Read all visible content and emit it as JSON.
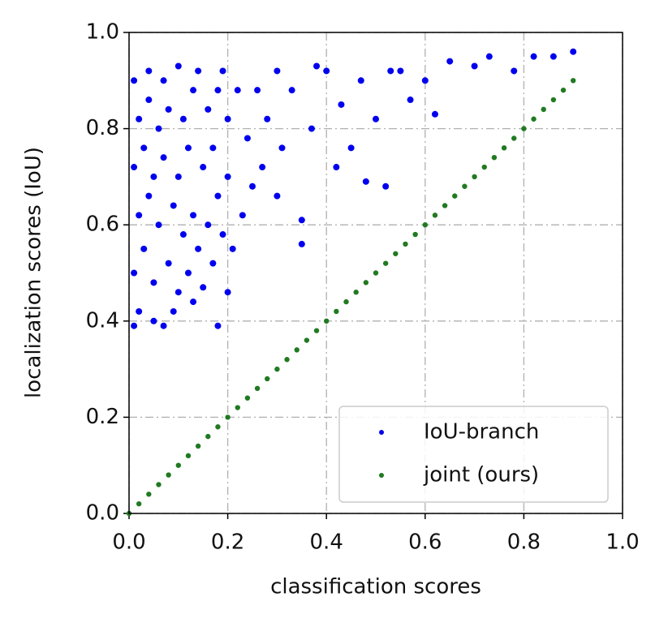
{
  "chart_data": {
    "type": "scatter",
    "xlabel": "classification scores",
    "ylabel": "localization scores (IoU)",
    "xlim": [
      0,
      1
    ],
    "ylim": [
      0,
      1
    ],
    "xticks": [
      {
        "value": 0,
        "label": "0.0"
      },
      0.2,
      0.4,
      0.6,
      0.8,
      {
        "value": 1,
        "label": "1.0"
      }
    ],
    "yticks": [
      {
        "value": 0,
        "label": "0.0"
      },
      0.2,
      0.4,
      0.6,
      0.8,
      {
        "value": 1,
        "label": "1.0"
      }
    ],
    "grid": true,
    "legend": "lower right",
    "series": [
      {
        "name": "IoU-branch",
        "color": "#0000ee",
        "x": [
          0.01,
          0.02,
          0.05,
          0.07,
          0.09,
          0.13,
          0.18,
          0.15,
          0.2,
          0.01,
          0.03,
          0.05,
          0.08,
          0.1,
          0.12,
          0.14,
          0.17,
          0.19,
          0.02,
          0.04,
          0.06,
          0.09,
          0.11,
          0.13,
          0.16,
          0.18,
          0.21,
          0.01,
          0.03,
          0.05,
          0.07,
          0.1,
          0.12,
          0.15,
          0.17,
          0.2,
          0.02,
          0.04,
          0.06,
          0.08,
          0.11,
          0.13,
          0.16,
          0.18,
          0.2,
          0.01,
          0.04,
          0.07,
          0.1,
          0.14,
          0.19,
          0.23,
          0.25,
          0.24,
          0.27,
          0.26,
          0.28,
          0.3,
          0.31,
          0.33,
          0.35,
          0.35,
          0.37,
          0.4,
          0.42,
          0.43,
          0.45,
          0.47,
          0.5,
          0.52,
          0.55,
          0.57,
          0.6,
          0.62,
          0.65,
          0.7,
          0.73,
          0.78,
          0.82,
          0.86,
          0.9,
          0.3,
          0.38,
          0.48,
          0.53,
          0.22
        ],
        "values": [
          0.39,
          0.42,
          0.4,
          0.39,
          0.42,
          0.44,
          0.39,
          0.47,
          0.46,
          0.5,
          0.55,
          0.48,
          0.52,
          0.46,
          0.5,
          0.55,
          0.52,
          0.58,
          0.62,
          0.66,
          0.6,
          0.64,
          0.58,
          0.62,
          0.6,
          0.66,
          0.55,
          0.72,
          0.76,
          0.7,
          0.74,
          0.7,
          0.76,
          0.72,
          0.76,
          0.7,
          0.82,
          0.86,
          0.8,
          0.84,
          0.82,
          0.88,
          0.84,
          0.88,
          0.82,
          0.9,
          0.92,
          0.9,
          0.93,
          0.92,
          0.92,
          0.62,
          0.68,
          0.78,
          0.72,
          0.88,
          0.82,
          0.66,
          0.76,
          0.88,
          0.61,
          0.56,
          0.8,
          0.92,
          0.72,
          0.85,
          0.76,
          0.9,
          0.82,
          0.68,
          0.92,
          0.86,
          0.9,
          0.83,
          0.94,
          0.93,
          0.95,
          0.92,
          0.95,
          0.95,
          0.96,
          0.92,
          0.93,
          0.69,
          0.92,
          0.88
        ]
      },
      {
        "name": "joint (ours)",
        "color": "#217a21",
        "x": [
          0,
          0.02,
          0.04,
          0.06,
          0.08,
          0.1,
          0.12,
          0.14,
          0.16,
          0.18,
          0.2,
          0.22,
          0.24,
          0.26,
          0.28,
          0.3,
          0.32,
          0.34,
          0.36,
          0.38,
          0.4,
          0.42,
          0.44,
          0.46,
          0.48,
          0.5,
          0.52,
          0.54,
          0.56,
          0.58,
          0.6,
          0.62,
          0.64,
          0.66,
          0.68,
          0.7,
          0.72,
          0.74,
          0.76,
          0.78,
          0.8,
          0.82,
          0.84,
          0.86,
          0.88,
          0.9
        ],
        "values": [
          0,
          0.02,
          0.04,
          0.06,
          0.08,
          0.1,
          0.12,
          0.14,
          0.16,
          0.18,
          0.2,
          0.22,
          0.24,
          0.26,
          0.28,
          0.3,
          0.32,
          0.34,
          0.36,
          0.38,
          0.4,
          0.42,
          0.44,
          0.46,
          0.48,
          0.5,
          0.52,
          0.54,
          0.56,
          0.58,
          0.6,
          0.62,
          0.64,
          0.66,
          0.68,
          0.7,
          0.72,
          0.74,
          0.76,
          0.78,
          0.8,
          0.82,
          0.84,
          0.86,
          0.88,
          0.9
        ]
      }
    ]
  }
}
